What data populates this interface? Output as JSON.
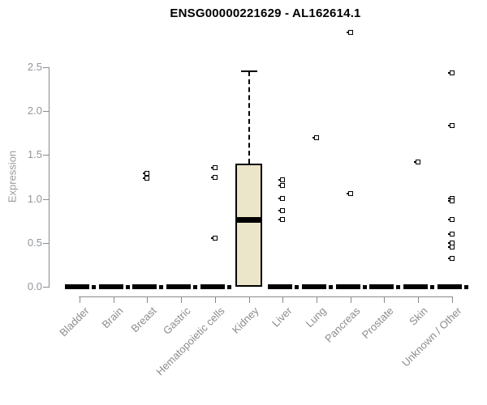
{
  "chart_data": {
    "type": "boxplot",
    "title": "ENSG00000221629 - AL162614.1",
    "xlabel": "",
    "ylabel": "Expression",
    "ylim": [
      0,
      2.5
    ],
    "yticks": [
      "0.0",
      "0.5",
      "1.0",
      "1.5",
      "2.0",
      "2.5"
    ],
    "grid": false,
    "legend": false,
    "box_fill_color": "#EBE5C9",
    "box_stroke_color": "#000000",
    "categories": [
      "Bladder",
      "Brain",
      "Breast",
      "Gastric",
      "Hematopoietic cells",
      "Kidney",
      "Liver",
      "Lung",
      "Pancreas",
      "Prostate",
      "Skin",
      "Unknown / Other"
    ],
    "series": [
      {
        "category": "Bladder",
        "q1": 0,
        "median": 0,
        "q3": 0,
        "whisker_low": 0,
        "whisker_high": 0,
        "outliers": []
      },
      {
        "category": "Brain",
        "q1": 0,
        "median": 0,
        "q3": 0,
        "whisker_low": 0,
        "whisker_high": 0,
        "outliers": []
      },
      {
        "category": "Breast",
        "q1": 0,
        "median": 0,
        "q3": 0,
        "whisker_low": 0,
        "whisker_high": 0,
        "outliers": [
          1.29,
          1.24
        ]
      },
      {
        "category": "Gastric",
        "q1": 0,
        "median": 0,
        "q3": 0,
        "whisker_low": 0,
        "whisker_high": 0,
        "outliers": []
      },
      {
        "category": "Hematopoietic cells",
        "q1": 0,
        "median": 0,
        "q3": 0,
        "whisker_low": 0,
        "whisker_high": 0,
        "outliers": [
          1.36,
          1.25,
          0.55
        ]
      },
      {
        "category": "Kidney",
        "q1": 0,
        "median": 0.76,
        "q3": 1.4,
        "whisker_low": 0,
        "whisker_high": 2.45,
        "outliers": []
      },
      {
        "category": "Liver",
        "q1": 0,
        "median": 0,
        "q3": 0,
        "whisker_low": 0,
        "whisker_high": 0,
        "outliers": [
          1.22,
          1.15,
          1.01,
          0.87,
          0.77
        ]
      },
      {
        "category": "Lung",
        "q1": 0,
        "median": 0,
        "q3": 0,
        "whisker_low": 0,
        "whisker_high": 0,
        "outliers": [
          1.7
        ]
      },
      {
        "category": "Pancreas",
        "q1": 0,
        "median": 0,
        "q3": 0,
        "whisker_low": 0,
        "whisker_high": 0,
        "outliers": [
          2.9,
          1.06
        ]
      },
      {
        "category": "Prostate",
        "q1": 0,
        "median": 0,
        "q3": 0,
        "whisker_low": 0,
        "whisker_high": 0,
        "outliers": []
      },
      {
        "category": "Skin",
        "q1": 0,
        "median": 0,
        "q3": 0,
        "whisker_low": 0,
        "whisker_high": 0,
        "outliers": [
          1.42
        ]
      },
      {
        "category": "Unknown / Other",
        "q1": 0,
        "median": 0,
        "q3": 0,
        "whisker_low": 0,
        "whisker_high": 0,
        "outliers": [
          2.44,
          1.84,
          1.01,
          0.98,
          0.77,
          0.6,
          0.5,
          0.45,
          0.32
        ]
      }
    ]
  }
}
